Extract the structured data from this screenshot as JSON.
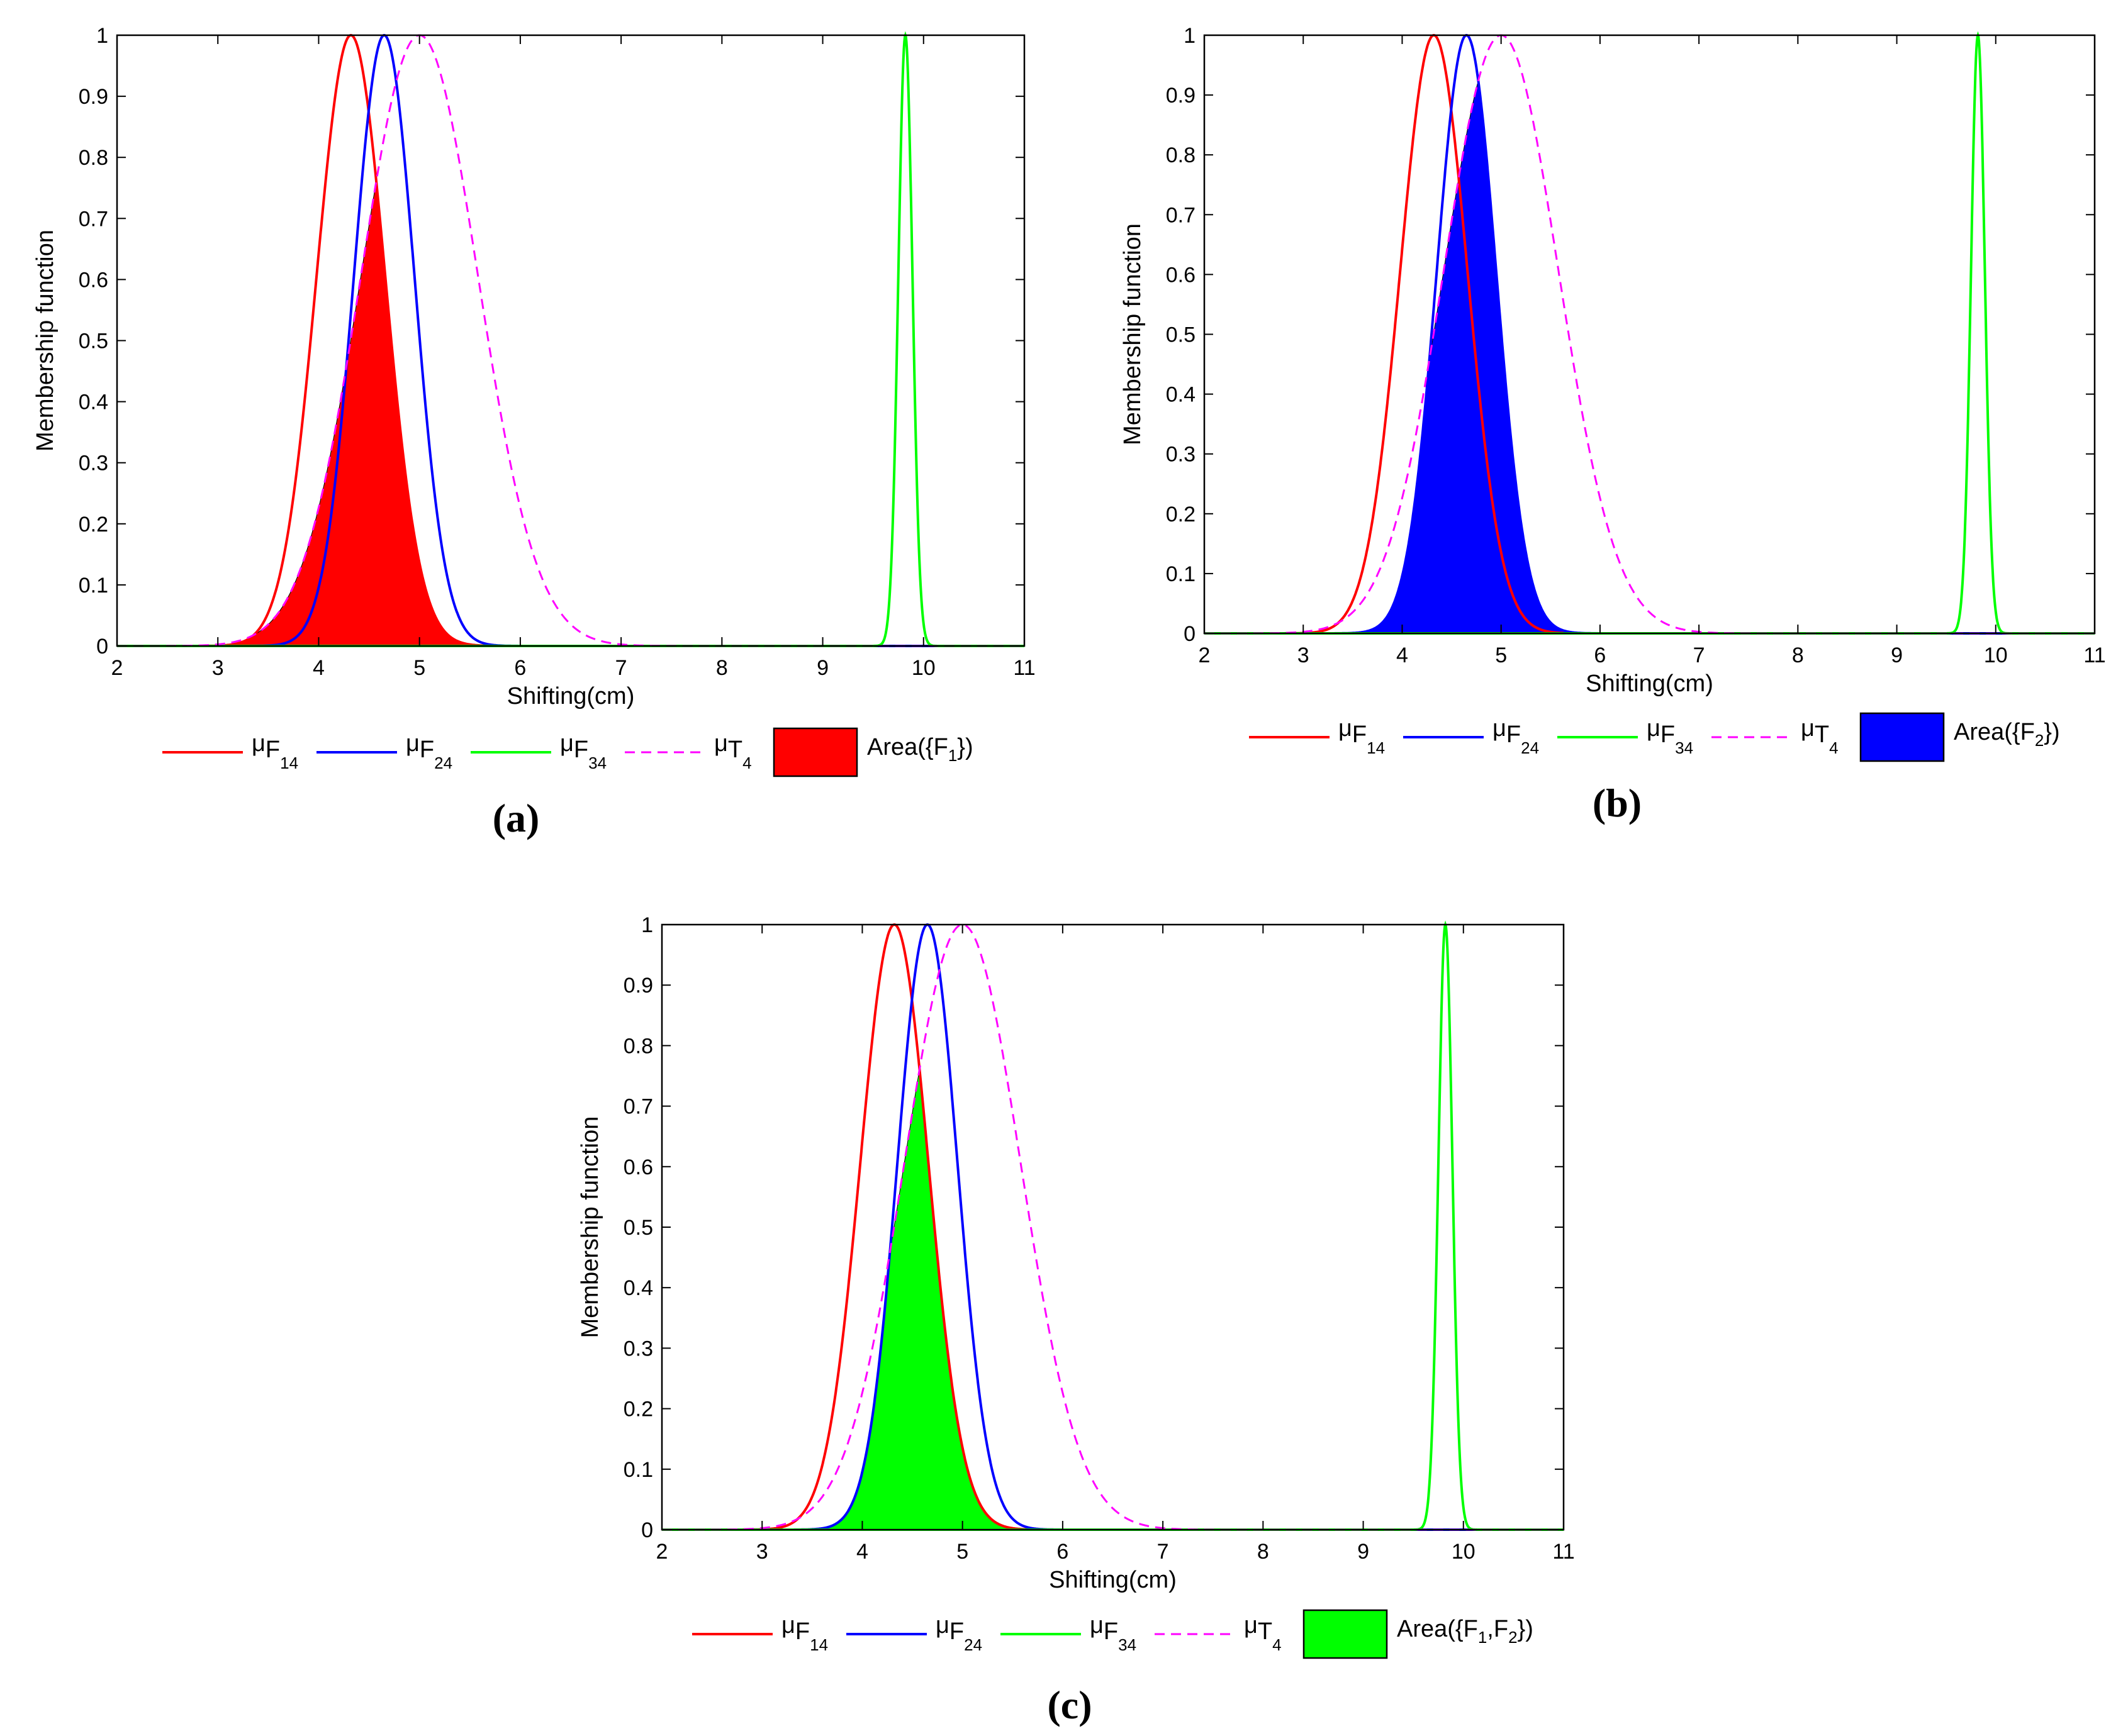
{
  "colors": {
    "red": "#ff0000",
    "blue": "#0000ff",
    "green": "#00ff00",
    "magenta": "#ff00ff",
    "axis": "#000000"
  },
  "chart_data": [
    {
      "id": "a",
      "panel_label": "(a)",
      "type": "line",
      "xlabel": "Shifting(cm)",
      "ylabel": "Membership function",
      "xlim": [
        2,
        11
      ],
      "ylim": [
        0,
        1
      ],
      "xticks": [
        2,
        3,
        4,
        5,
        6,
        7,
        8,
        9,
        10,
        11
      ],
      "yticks": [
        0,
        0.1,
        0.2,
        0.3,
        0.4,
        0.5,
        0.6,
        0.7,
        0.8,
        0.9,
        1
      ],
      "series": [
        {
          "name": "μF14",
          "base": "μ",
          "sub": "F",
          "subsub": "14",
          "color": "#ff0000",
          "dash": false,
          "mean": 4.32,
          "sigma": 0.34
        },
        {
          "name": "μF24",
          "base": "μ",
          "sub": "F",
          "subsub": "24",
          "color": "#0000ff",
          "dash": false,
          "mean": 4.65,
          "sigma": 0.3
        },
        {
          "name": "μF34",
          "base": "μ",
          "sub": "F",
          "subsub": "34",
          "color": "#00ff00",
          "dash": false,
          "mean": 9.82,
          "sigma": 0.07
        },
        {
          "name": "μT4",
          "base": "μ",
          "sub": "T",
          "subsub": "4",
          "color": "#ff00ff",
          "dash": true,
          "mean": 5.0,
          "sigma": 0.58
        }
      ],
      "area": {
        "label": "Area({F1})",
        "text_before": "Area({F",
        "sub": "1",
        "text_after": "})",
        "color": "#ff0000",
        "of": [
          "μF14",
          "μT4"
        ]
      }
    },
    {
      "id": "b",
      "panel_label": "(b)",
      "type": "line",
      "xlabel": "Shifting(cm)",
      "ylabel": "Membership function",
      "xlim": [
        2,
        11
      ],
      "ylim": [
        0,
        1
      ],
      "xticks": [
        2,
        3,
        4,
        5,
        6,
        7,
        8,
        9,
        10,
        11
      ],
      "yticks": [
        0,
        0.1,
        0.2,
        0.3,
        0.4,
        0.5,
        0.6,
        0.7,
        0.8,
        0.9,
        1
      ],
      "series": [
        {
          "name": "μF14",
          "base": "μ",
          "sub": "F",
          "subsub": "14",
          "color": "#ff0000",
          "dash": false,
          "mean": 4.32,
          "sigma": 0.34
        },
        {
          "name": "μF24",
          "base": "μ",
          "sub": "F",
          "subsub": "24",
          "color": "#0000ff",
          "dash": false,
          "mean": 4.65,
          "sigma": 0.3
        },
        {
          "name": "μF34",
          "base": "μ",
          "sub": "F",
          "subsub": "34",
          "color": "#00ff00",
          "dash": false,
          "mean": 9.82,
          "sigma": 0.07
        },
        {
          "name": "μT4",
          "base": "μ",
          "sub": "T",
          "subsub": "4",
          "color": "#ff00ff",
          "dash": true,
          "mean": 5.0,
          "sigma": 0.58
        }
      ],
      "area": {
        "label": "Area({F2})",
        "text_before": "Area({F",
        "sub": "2",
        "text_after": "})",
        "color": "#0000ff",
        "of": [
          "μF24",
          "μT4"
        ]
      }
    },
    {
      "id": "c",
      "panel_label": "(c)",
      "type": "line",
      "xlabel": "Shifting(cm)",
      "ylabel": "Membership function",
      "xlim": [
        2,
        11
      ],
      "ylim": [
        0,
        1
      ],
      "xticks": [
        2,
        3,
        4,
        5,
        6,
        7,
        8,
        9,
        10,
        11
      ],
      "yticks": [
        0,
        0.1,
        0.2,
        0.3,
        0.4,
        0.5,
        0.6,
        0.7,
        0.8,
        0.9,
        1
      ],
      "series": [
        {
          "name": "μF14",
          "base": "μ",
          "sub": "F",
          "subsub": "14",
          "color": "#ff0000",
          "dash": false,
          "mean": 4.32,
          "sigma": 0.34
        },
        {
          "name": "μF24",
          "base": "μ",
          "sub": "F",
          "subsub": "24",
          "color": "#0000ff",
          "dash": false,
          "mean": 4.65,
          "sigma": 0.3
        },
        {
          "name": "μF34",
          "base": "μ",
          "sub": "F",
          "subsub": "34",
          "color": "#00ff00",
          "dash": false,
          "mean": 9.82,
          "sigma": 0.07
        },
        {
          "name": "μT4",
          "base": "μ",
          "sub": "T",
          "subsub": "4",
          "color": "#ff00ff",
          "dash": true,
          "mean": 5.0,
          "sigma": 0.58
        }
      ],
      "area": {
        "label": "Area({F1,F2})",
        "text_before": "Area({F",
        "sub": "1",
        "text_mid": ",F",
        "sub2": "2",
        "text_after": "})",
        "color": "#00ff00",
        "of": [
          "μF14",
          "μF24",
          "μT4"
        ]
      }
    }
  ]
}
